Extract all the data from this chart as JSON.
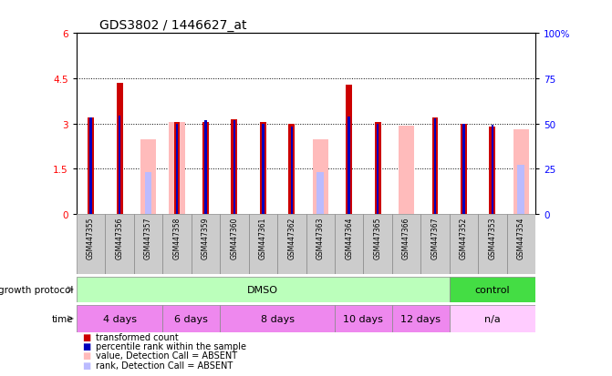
{
  "title": "GDS3802 / 1446627_at",
  "samples": [
    "GSM447355",
    "GSM447356",
    "GSM447357",
    "GSM447358",
    "GSM447359",
    "GSM447360",
    "GSM447361",
    "GSM447362",
    "GSM447363",
    "GSM447364",
    "GSM447365",
    "GSM447366",
    "GSM447367",
    "GSM447352",
    "GSM447353",
    "GSM447354"
  ],
  "red_values": [
    3.2,
    4.35,
    0.0,
    3.05,
    3.05,
    3.15,
    3.05,
    3.0,
    0.0,
    4.28,
    3.05,
    0.0,
    3.2,
    3.0,
    2.9,
    0.0
  ],
  "pink_values": [
    0.0,
    0.0,
    2.48,
    3.06,
    0.0,
    0.0,
    0.0,
    0.0,
    2.48,
    0.0,
    0.0,
    2.92,
    0.0,
    0.0,
    0.0,
    2.82
  ],
  "blue_values": [
    3.2,
    3.25,
    0.0,
    3.0,
    3.12,
    3.12,
    3.0,
    2.9,
    0.0,
    3.22,
    3.0,
    0.0,
    3.18,
    3.0,
    2.95,
    0.0
  ],
  "lightblue_values": [
    0.0,
    0.0,
    1.38,
    0.0,
    0.0,
    0.0,
    0.0,
    0.0,
    1.38,
    0.0,
    0.0,
    0.0,
    0.0,
    0.0,
    0.0,
    1.62
  ],
  "ylim_left": [
    0,
    6
  ],
  "ylim_right": [
    0,
    100
  ],
  "yticks_left": [
    0,
    1.5,
    3.0,
    4.5,
    6
  ],
  "ytick_left_labels": [
    "0",
    "1.5",
    "3",
    "4.5",
    "6"
  ],
  "yticks_right": [
    0,
    25,
    50,
    75,
    100
  ],
  "y_right_labels": [
    "0",
    "25",
    "50",
    "75",
    "100%"
  ],
  "red_color": "#cc0000",
  "pink_color": "#ffbbbb",
  "blue_color": "#0000bb",
  "lightblue_color": "#bbbbff",
  "protocol_label": "growth protocol",
  "time_label": "time",
  "protocol_groups": [
    {
      "label": "DMSO",
      "start": 0,
      "end": 12,
      "color": "#bbffbb"
    },
    {
      "label": "control",
      "start": 13,
      "end": 15,
      "color": "#44dd44"
    }
  ],
  "time_groups": [
    {
      "label": "4 days",
      "start": 0,
      "end": 2,
      "color": "#ee88ee"
    },
    {
      "label": "6 days",
      "start": 3,
      "end": 4,
      "color": "#ee88ee"
    },
    {
      "label": "8 days",
      "start": 5,
      "end": 8,
      "color": "#ee88ee"
    },
    {
      "label": "10 days",
      "start": 9,
      "end": 10,
      "color": "#ee88ee"
    },
    {
      "label": "12 days",
      "start": 11,
      "end": 12,
      "color": "#ee88ee"
    },
    {
      "label": "n/a",
      "start": 13,
      "end": 15,
      "color": "#ffccff"
    }
  ],
  "legend_items": [
    {
      "label": "transformed count",
      "color": "#cc0000"
    },
    {
      "label": "percentile rank within the sample",
      "color": "#0000bb"
    },
    {
      "label": "value, Detection Call = ABSENT",
      "color": "#ffbbbb"
    },
    {
      "label": "rank, Detection Call = ABSENT",
      "color": "#bbbbff"
    }
  ]
}
